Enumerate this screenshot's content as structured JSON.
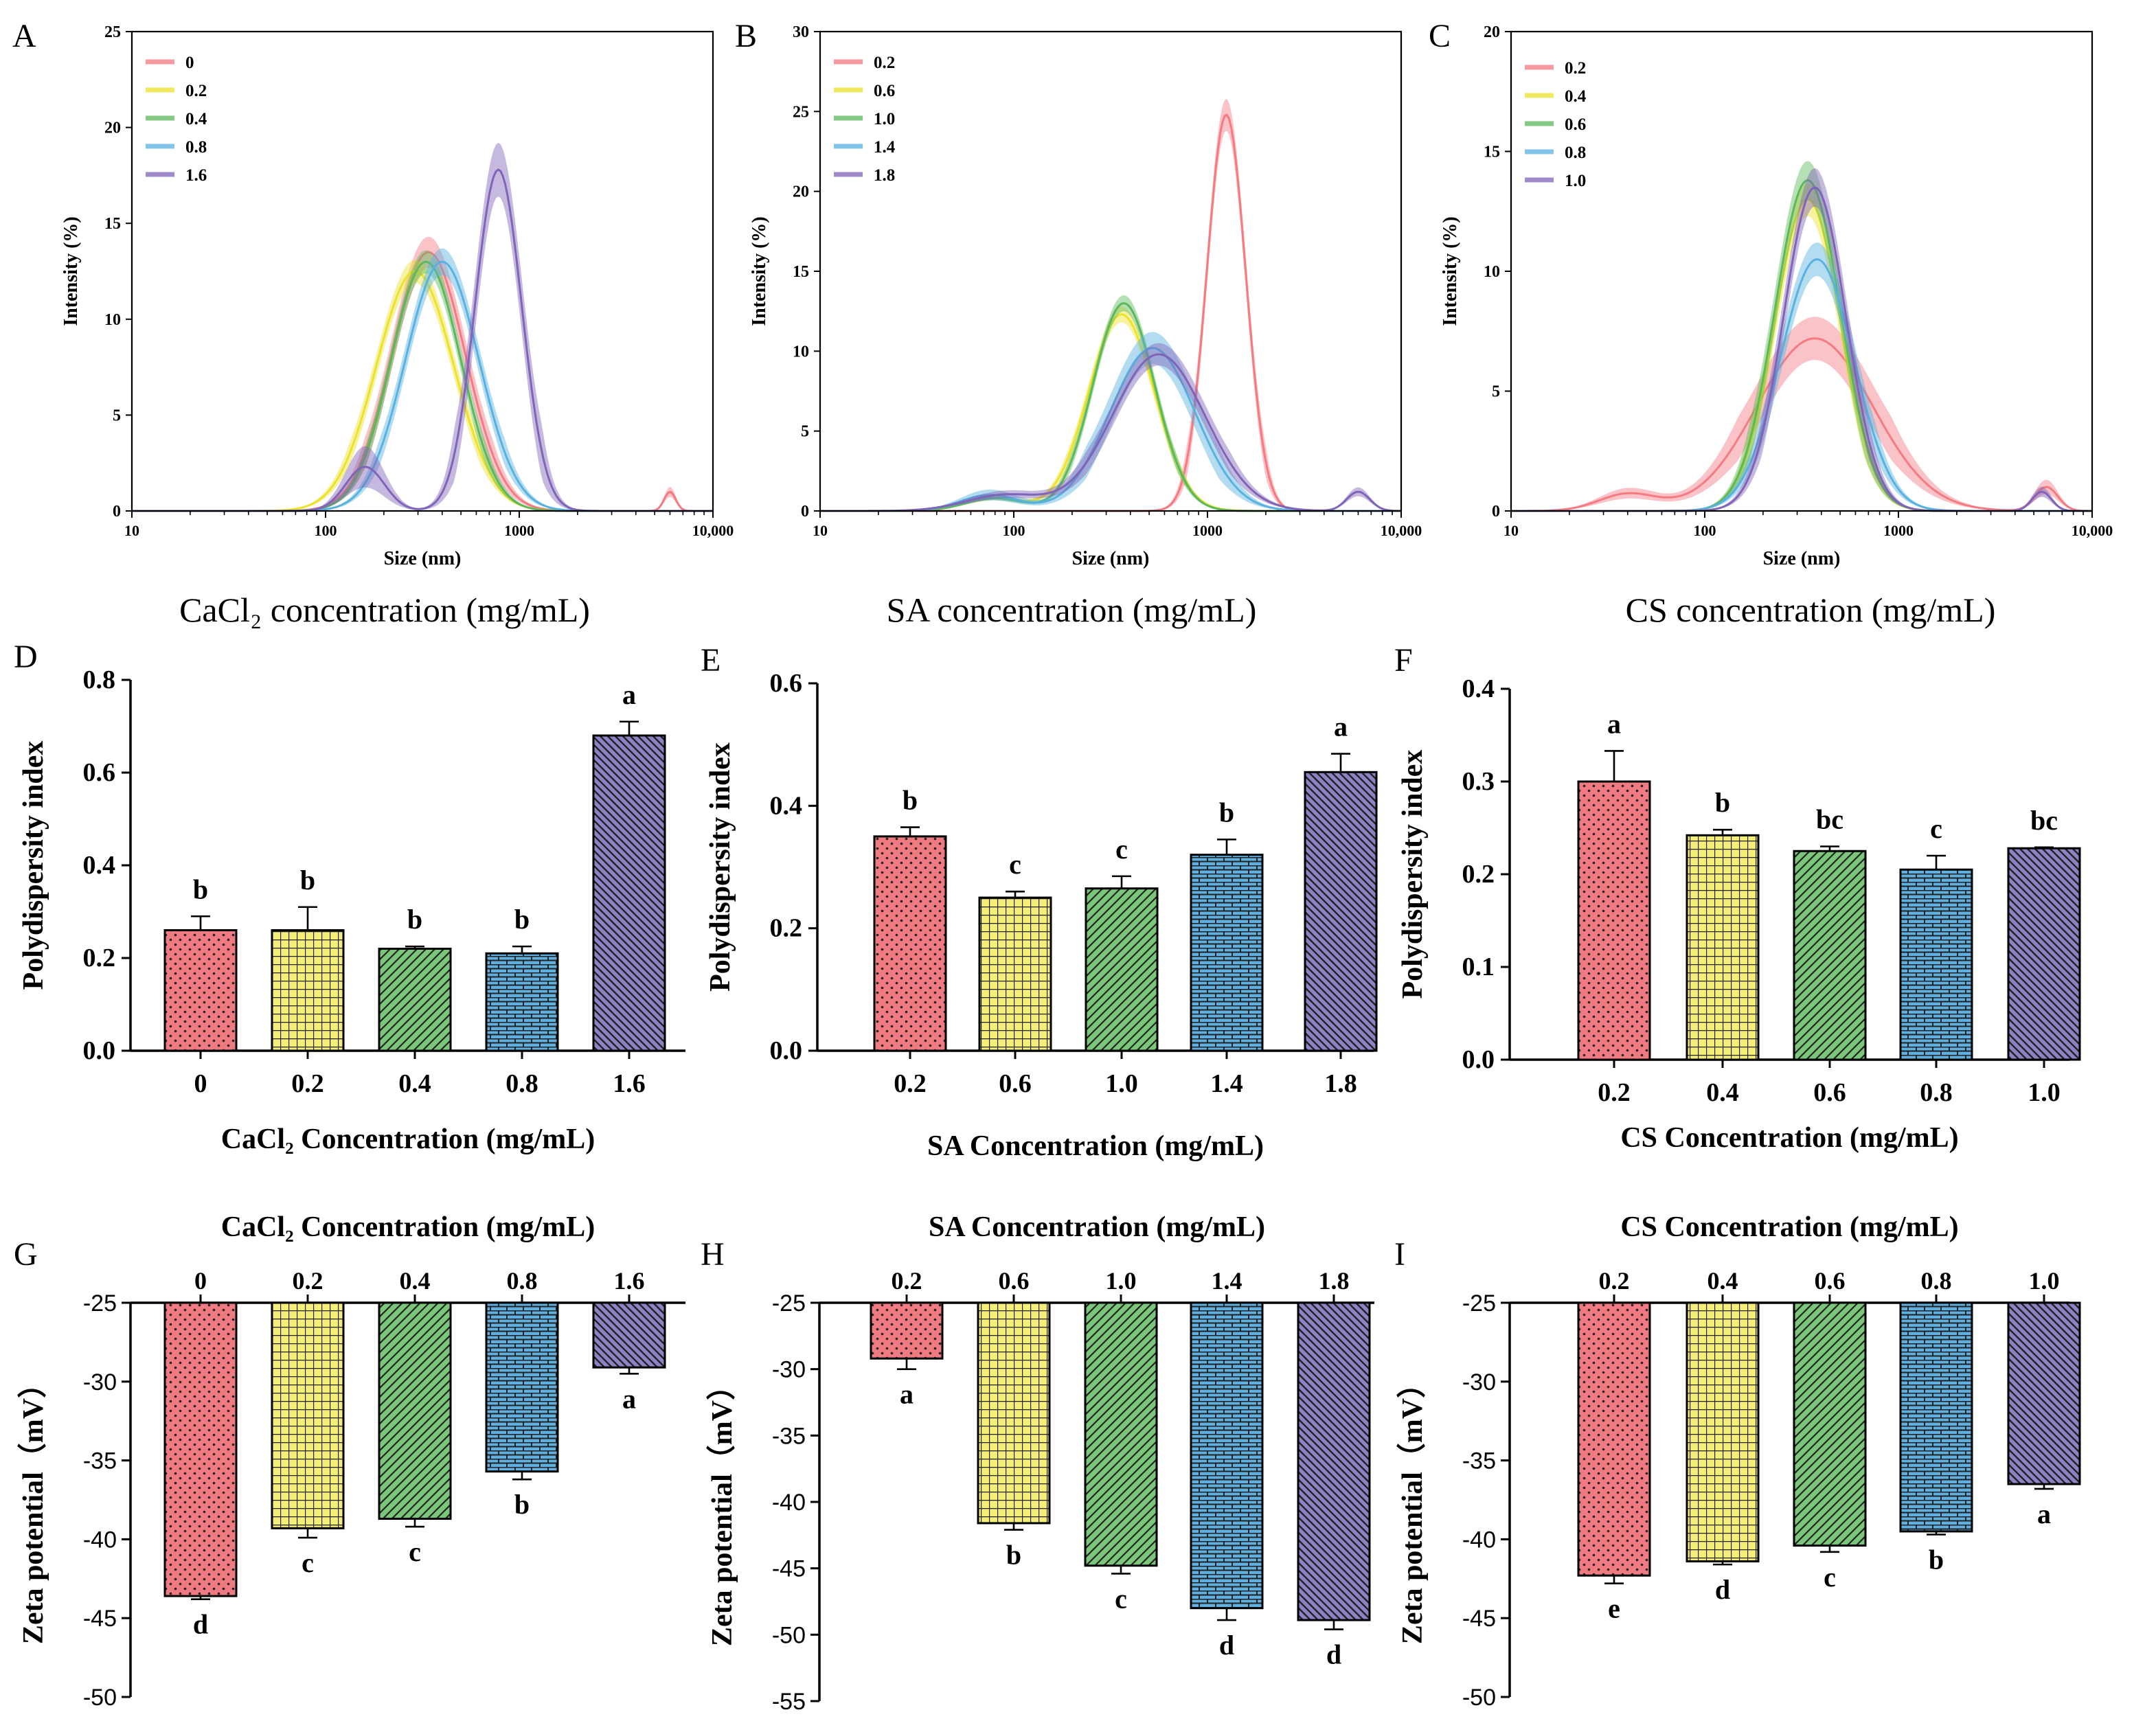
{
  "palette": {
    "red": "#F07A82",
    "yellow": "#F4EE78",
    "green": "#7AC77A",
    "blue": "#5FAFE0",
    "purple": "#8C82C6",
    "line_red": "#F57A82",
    "line_yellow": "#ECE22A",
    "line_green": "#5BB85B",
    "line_blue": "#58B2E0",
    "line_purple": "#8064B8"
  },
  "patterns": [
    "dots",
    "grid",
    "diag",
    "brick",
    "backdiag"
  ],
  "chart_data": [
    {
      "panel": "A",
      "type": "line",
      "xscale": "log",
      "xlim": [
        10,
        10000
      ],
      "xticks": [
        10,
        100,
        1000,
        10000
      ],
      "xtick_labels": [
        "10",
        "100",
        "1000",
        "10,000"
      ],
      "ylim": [
        0,
        25
      ],
      "yticks": [
        0,
        5,
        10,
        15,
        20,
        25
      ],
      "xlabel": "Size (nm)",
      "ylabel": "Intensity (%)",
      "caption": "CaCl₂ concentration (mg/mL)",
      "legend": [
        "0",
        "0.2",
        "0.4",
        "0.8",
        "1.6"
      ],
      "series": [
        {
          "name": "0",
          "peaks": [
            [
              340,
              13.5,
              0.19
            ],
            [
              6000,
              1.0,
              0.03
            ]
          ],
          "band": 0.8
        },
        {
          "name": "0.2",
          "peaks": [
            [
              290,
              12.5,
              0.2
            ]
          ],
          "band": 0.6
        },
        {
          "name": "0.4",
          "peaks": [
            [
              330,
              13.0,
              0.18
            ]
          ],
          "band": 0.6
        },
        {
          "name": "0.8",
          "peaks": [
            [
              400,
              13.0,
              0.19
            ]
          ],
          "band": 0.7
        },
        {
          "name": "1.6",
          "peaks": [
            [
              160,
              2.3,
              0.1
            ],
            [
              780,
              17.8,
              0.12
            ]
          ],
          "band": 1.4
        }
      ]
    },
    {
      "panel": "B",
      "type": "line",
      "xscale": "log",
      "xlim": [
        10,
        10000
      ],
      "xticks": [
        10,
        100,
        1000,
        10000
      ],
      "xtick_labels": [
        "10",
        "100",
        "1000",
        "10,000"
      ],
      "ylim": [
        0,
        30
      ],
      "yticks": [
        0,
        5,
        10,
        15,
        20,
        25,
        30
      ],
      "xlabel": "Size (nm)",
      "ylabel": "Intensity (%)",
      "caption": "SA concentration (mg/mL)",
      "legend": [
        "0.2",
        "0.6",
        "1.0",
        "1.4",
        "1.8"
      ],
      "series": [
        {
          "name": "0.2",
          "peaks": [
            [
              1250,
              24.8,
              0.1
            ]
          ],
          "band": 1.0
        },
        {
          "name": "0.6",
          "peaks": [
            [
              360,
              12.3,
              0.17
            ],
            [
              80,
              0.8,
              0.15
            ]
          ],
          "band": 0.5
        },
        {
          "name": "1.0",
          "peaks": [
            [
              370,
              13.0,
              0.16
            ],
            [
              80,
              0.8,
              0.15
            ]
          ],
          "band": 0.5
        },
        {
          "name": "1.4",
          "peaks": [
            [
              520,
              10.2,
              0.22
            ],
            [
              75,
              1.0,
              0.15
            ]
          ],
          "band": 1.0
        },
        {
          "name": "1.8",
          "peaks": [
            [
              560,
              9.8,
              0.24
            ],
            [
              90,
              1.0,
              0.2
            ],
            [
              6000,
              1.2,
              0.06
            ]
          ],
          "band": 0.7
        }
      ]
    },
    {
      "panel": "C",
      "type": "line",
      "xscale": "log",
      "xlim": [
        10,
        10000
      ],
      "xticks": [
        10,
        100,
        1000,
        10000
      ],
      "xtick_labels": [
        "10",
        "100",
        "1000",
        "10,000"
      ],
      "ylim": [
        0,
        20
      ],
      "yticks": [
        0,
        5,
        10,
        15,
        20
      ],
      "xlabel": "Size (nm)",
      "ylabel": "Intensity (%)",
      "caption": "CS concentration (mg/mL)",
      "legend": [
        "0.2",
        "0.4",
        "0.6",
        "0.8",
        "1.0"
      ],
      "series": [
        {
          "name": "0.2",
          "peaks": [
            [
              370,
              7.2,
              0.3
            ],
            [
              40,
              0.7,
              0.15
            ],
            [
              5800,
              1.0,
              0.06
            ]
          ],
          "band": 0.9
        },
        {
          "name": "0.4",
          "peaks": [
            [
              340,
              13.0,
              0.17
            ]
          ],
          "band": 0.7
        },
        {
          "name": "0.6",
          "peaks": [
            [
              340,
              13.8,
              0.17
            ]
          ],
          "band": 0.8
        },
        {
          "name": "0.8",
          "peaks": [
            [
              380,
              10.5,
              0.19
            ]
          ],
          "band": 0.7
        },
        {
          "name": "1.0",
          "peaks": [
            [
              370,
              13.5,
              0.16
            ],
            [
              5500,
              0.8,
              0.05
            ]
          ],
          "band": 0.8
        }
      ]
    },
    {
      "panel": "D",
      "type": "bar",
      "categories": [
        "0",
        "0.2",
        "0.4",
        "0.8",
        "1.6"
      ],
      "values": [
        0.26,
        0.26,
        0.22,
        0.21,
        0.68
      ],
      "errors": [
        0.03,
        0.05,
        0.005,
        0.015,
        0.03
      ],
      "letters": [
        "b",
        "b",
        "b",
        "b",
        "a"
      ],
      "ylim": [
        0,
        0.8
      ],
      "yticks": [
        0.0,
        0.2,
        0.4,
        0.6,
        0.8
      ],
      "ytick_labels": [
        "0.0",
        "0.2",
        "0.4",
        "0.6",
        "0.8"
      ],
      "ylabel": "Polydispersity index",
      "xlabel": "CaCl₂ Concentration (mg/mL)"
    },
    {
      "panel": "E",
      "type": "bar",
      "categories": [
        "0.2",
        "0.6",
        "1.0",
        "1.4",
        "1.8"
      ],
      "values": [
        0.35,
        0.25,
        0.265,
        0.32,
        0.455
      ],
      "errors": [
        0.015,
        0.01,
        0.02,
        0.025,
        0.03
      ],
      "letters": [
        "b",
        "c",
        "c",
        "b",
        "a"
      ],
      "ylim": [
        0,
        0.6
      ],
      "yticks": [
        0.0,
        0.2,
        0.4,
        0.6
      ],
      "ytick_labels": [
        "0.0",
        "0.2",
        "0.4",
        "0.6"
      ],
      "ylabel": "Polydispersity index",
      "xlabel": "SA Concentration (mg/mL)"
    },
    {
      "panel": "F",
      "type": "bar",
      "categories": [
        "0.2",
        "0.4",
        "0.6",
        "0.8",
        "1.0"
      ],
      "values": [
        0.3,
        0.242,
        0.225,
        0.205,
        0.228
      ],
      "errors": [
        0.033,
        0.006,
        0.005,
        0.015,
        0.001
      ],
      "letters": [
        "a",
        "b",
        "bc",
        "c",
        "bc"
      ],
      "ylim": [
        0,
        0.4
      ],
      "yticks": [
        0.0,
        0.1,
        0.2,
        0.3,
        0.4
      ],
      "ytick_labels": [
        "0.0",
        "0.1",
        "0.2",
        "0.3",
        "0.4"
      ],
      "ylabel": "Polydispersity index",
      "xlabel": "CS Concentration (mg/mL)"
    },
    {
      "panel": "G",
      "type": "bar",
      "categories": [
        "0",
        "0.2",
        "0.4",
        "0.8",
        "1.6"
      ],
      "values": [
        -43.6,
        -39.3,
        -38.7,
        -35.7,
        -29.1
      ],
      "errors": [
        0.2,
        0.6,
        0.5,
        0.5,
        0.4
      ],
      "letters": [
        "d",
        "c",
        "c",
        "b",
        "a"
      ],
      "ylim": [
        -50,
        -25
      ],
      "yticks": [
        -25,
        -30,
        -35,
        -40,
        -45,
        -50
      ],
      "ylabel": "Zeta potential（mV）",
      "xlabel": "CaCl₂ Concentration (mg/mL)"
    },
    {
      "panel": "H",
      "type": "bar",
      "categories": [
        "0.2",
        "0.6",
        "1.0",
        "1.4",
        "1.8"
      ],
      "values": [
        -29.2,
        -41.6,
        -44.8,
        -48.0,
        -48.9
      ],
      "errors": [
        0.8,
        0.5,
        0.6,
        0.9,
        0.7
      ],
      "letters": [
        "a",
        "b",
        "c",
        "d",
        "d"
      ],
      "ylim": [
        -55,
        -25
      ],
      "yticks": [
        -25,
        -30,
        -35,
        -40,
        -45,
        -50,
        -55
      ],
      "ylabel": "Zeta potential（mV）",
      "xlabel": "SA Concentration (mg/mL)"
    },
    {
      "panel": "I",
      "type": "bar",
      "categories": [
        "0.2",
        "0.4",
        "0.6",
        "0.8",
        "1.0"
      ],
      "values": [
        -42.3,
        -41.4,
        -40.4,
        -39.5,
        -36.5
      ],
      "errors": [
        0.5,
        0.2,
        0.4,
        0.2,
        0.3
      ],
      "letters": [
        "e",
        "d",
        "c",
        "b",
        "a"
      ],
      "ylim": [
        -50,
        -25
      ],
      "yticks": [
        -25,
        -30,
        -35,
        -40,
        -45,
        -50
      ],
      "ylabel": "Zeta potential（mV）",
      "xlabel": "CS Concentration (mg/mL)"
    }
  ]
}
